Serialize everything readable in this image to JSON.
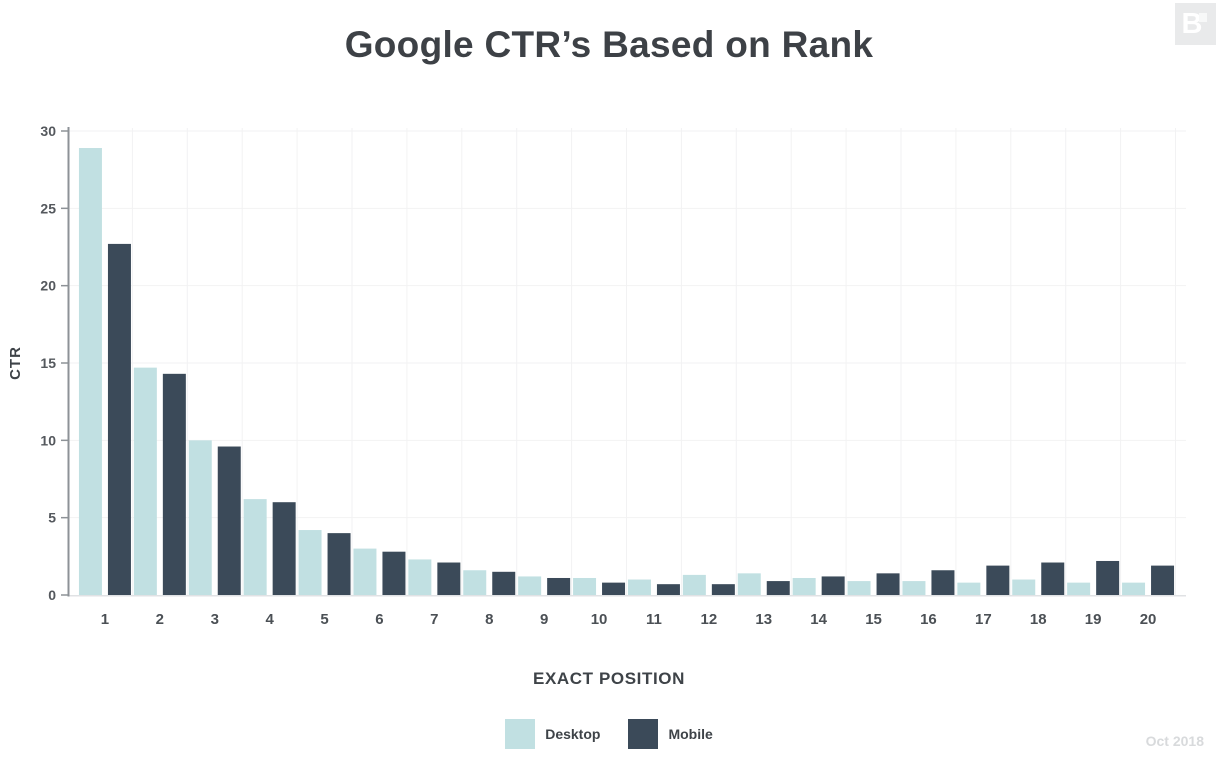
{
  "brand": {
    "logo_letter": "B"
  },
  "footer": {
    "date": "Oct 2018"
  },
  "chart_data": {
    "type": "bar",
    "title": "Google CTR’s Based on Rank",
    "xlabel": "EXACT POSITION",
    "ylabel": "CTR",
    "categories": [
      "1",
      "2",
      "3",
      "4",
      "5",
      "6",
      "7",
      "8",
      "9",
      "10",
      "11",
      "12",
      "13",
      "14",
      "15",
      "16",
      "17",
      "18",
      "19",
      "20"
    ],
    "series": [
      {
        "name": "Desktop",
        "color": "#c1e0e2",
        "values": [
          28.9,
          14.7,
          10.0,
          6.2,
          4.2,
          3.0,
          2.3,
          1.6,
          1.2,
          1.1,
          1.0,
          1.3,
          1.4,
          1.1,
          0.9,
          0.9,
          0.8,
          1.0,
          0.8,
          0.8
        ]
      },
      {
        "name": "Mobile",
        "color": "#3b4a59",
        "values": [
          22.7,
          14.3,
          9.6,
          6.0,
          4.0,
          2.8,
          2.1,
          1.5,
          1.1,
          0.8,
          0.7,
          0.7,
          0.9,
          1.2,
          1.4,
          1.6,
          1.9,
          2.1,
          2.2,
          1.9
        ]
      }
    ],
    "ylim": [
      0,
      30
    ],
    "yticks": [
      0,
      5,
      10,
      15,
      20,
      25,
      30
    ],
    "grid": true,
    "legend_position": "bottom"
  }
}
